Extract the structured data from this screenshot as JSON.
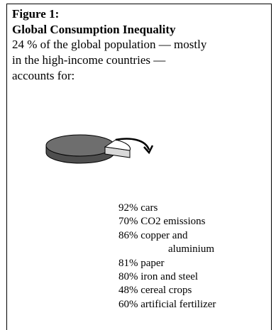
{
  "figure": {
    "label": "Figure 1:",
    "title": "Global Consumption Inequality",
    "intro_lines": [
      "24 % of the global population — mostly",
      "in the high-income countries —",
      "accounts for:"
    ]
  },
  "illustration": {
    "icon": "pie-chart-icon",
    "colors": {
      "pie_fill": "#6e6e6e",
      "slice_fill": "#ffffff",
      "outline": "#000000"
    }
  },
  "stats": [
    {
      "lines": [
        "92% cars"
      ]
    },
    {
      "lines": [
        "70% CO2 emissions"
      ]
    },
    {
      "lines": [
        "86% copper and",
        "aluminium"
      ]
    },
    {
      "lines": [
        "81% paper"
      ]
    },
    {
      "lines": [
        "80% iron and steel"
      ]
    },
    {
      "lines": [
        "48% cereal crops"
      ]
    },
    {
      "lines": [
        "60% artificial fertilizer"
      ]
    }
  ]
}
